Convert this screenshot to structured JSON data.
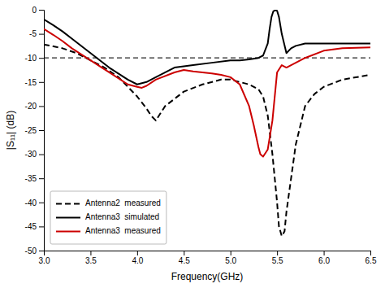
{
  "chart_data": {
    "type": "line",
    "xlabel": "Frequency(GHz)",
    "ylabel": "|S₁₁| (dB)",
    "xlim": [
      3.0,
      6.5
    ],
    "ylim": [
      -50,
      0
    ],
    "xticks": [
      {
        "value": 3.0,
        "label": "3.0"
      },
      3.5,
      {
        "value": 4.0,
        "label": "4.0"
      },
      4.5,
      {
        "value": 5.0,
        "label": "5.0"
      },
      5.5,
      {
        "value": 6.0,
        "label": "6.0"
      },
      6.5
    ],
    "yticks": [
      0,
      -5,
      -10,
      -15,
      -20,
      -25,
      -30,
      -35,
      -40,
      -45,
      -50
    ],
    "hline_y": -10,
    "grid": false,
    "legend": "lower left",
    "series": [
      {
        "name": "Antenna2  measured",
        "color": "black",
        "line_style": "dashed",
        "x": [
          3.0,
          3.2,
          3.35,
          3.5,
          3.65,
          3.8,
          3.9,
          4.0,
          4.1,
          4.15,
          4.2,
          4.3,
          4.5,
          4.7,
          4.9,
          5.0,
          5.1,
          5.2,
          5.3,
          5.35,
          5.4,
          5.45,
          5.5,
          5.52,
          5.55,
          5.58,
          5.6,
          5.7,
          5.8,
          5.9,
          6.0,
          6.2,
          6.5
        ],
        "values": [
          -7.2,
          -8.0,
          -9.0,
          -10.5,
          -12.0,
          -14.0,
          -16.0,
          -18.0,
          -20.5,
          -22.0,
          -23.0,
          -20.0,
          -17.0,
          -15.5,
          -14.5,
          -14.5,
          -15.0,
          -15.5,
          -16.5,
          -18.0,
          -22.0,
          -30.0,
          -40.0,
          -45.0,
          -47.0,
          -46.0,
          -42.0,
          -28.0,
          -20.0,
          -17.5,
          -16.0,
          -14.5,
          -13.5
        ]
      },
      {
        "name": "Antenna3  simulated",
        "color": "black",
        "line_style": "solid",
        "x": [
          3.0,
          3.1,
          3.2,
          3.3,
          3.5,
          3.7,
          3.9,
          4.0,
          4.1,
          4.2,
          4.4,
          4.6,
          4.8,
          5.0,
          5.1,
          5.2,
          5.3,
          5.35,
          5.4,
          5.42,
          5.44,
          5.46,
          5.48,
          5.5,
          5.52,
          5.55,
          5.6,
          5.65,
          5.7,
          5.8,
          6.0,
          6.2,
          6.5
        ],
        "values": [
          -2.0,
          -3.2,
          -4.5,
          -6.0,
          -9.0,
          -12.0,
          -14.5,
          -15.5,
          -15.0,
          -14.0,
          -12.0,
          -11.5,
          -11.0,
          -10.5,
          -10.5,
          -10.3,
          -10.0,
          -9.5,
          -7.0,
          -4.0,
          -1.5,
          -0.3,
          -0.1,
          -0.2,
          -1.5,
          -5.0,
          -9.0,
          -8.0,
          -7.5,
          -7.0,
          -7.0,
          -7.0,
          -7.0
        ]
      },
      {
        "name": "Antenna3  measured",
        "color": "#cc0000",
        "line_style": "solid",
        "x": [
          3.0,
          3.1,
          3.2,
          3.3,
          3.5,
          3.7,
          3.9,
          4.0,
          4.05,
          4.1,
          4.2,
          4.4,
          4.5,
          4.6,
          4.7,
          4.8,
          4.9,
          5.0,
          5.1,
          5.2,
          5.25,
          5.3,
          5.32,
          5.35,
          5.4,
          5.45,
          5.5,
          5.55,
          5.6,
          5.7,
          5.8,
          6.0,
          6.2,
          6.5
        ],
        "values": [
          -4.0,
          -5.2,
          -6.5,
          -8.0,
          -10.5,
          -13.0,
          -15.5,
          -16.0,
          -16.2,
          -15.8,
          -14.5,
          -13.0,
          -12.5,
          -12.8,
          -13.0,
          -13.2,
          -13.5,
          -14.0,
          -15.5,
          -20.0,
          -24.0,
          -28.5,
          -30.0,
          -30.5,
          -29.0,
          -23.0,
          -13.0,
          -11.5,
          -12.0,
          -11.0,
          -10.0,
          -8.5,
          -8.0,
          -7.8
        ]
      }
    ]
  }
}
